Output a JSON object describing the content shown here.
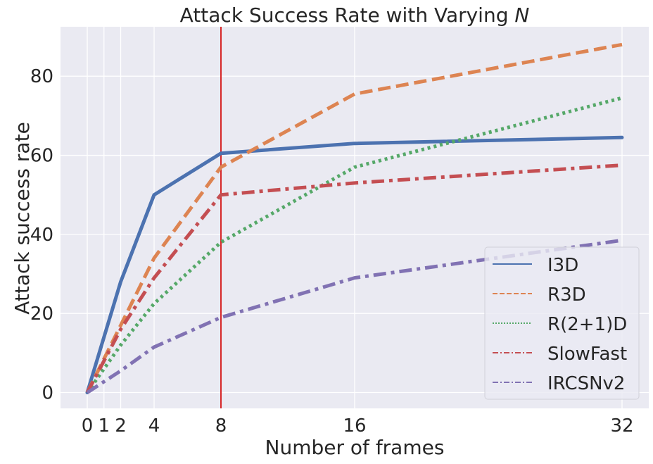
{
  "chart_data": {
    "type": "line",
    "title": "Attack Success Rate with Varying ",
    "title_italic": "N",
    "xlabel": "Number of frames",
    "ylabel": "Attack success rate",
    "xticks": [
      0,
      1,
      2,
      4,
      8,
      16,
      32
    ],
    "yticks": [
      0,
      20,
      40,
      60,
      80
    ],
    "xlim": [
      -1.6,
      33.6
    ],
    "ylim": [
      -4,
      92.5
    ],
    "grid": true,
    "legend_position": "lower-right",
    "vline_x": 8,
    "vline_color": "#d62728",
    "x": [
      0,
      2,
      4,
      8,
      16,
      32
    ],
    "series": [
      {
        "name": "I3D",
        "values": [
          0,
          28,
          50,
          60.5,
          63,
          64.5
        ],
        "color": "#4c72b0",
        "dash": "solid"
      },
      {
        "name": "R3D",
        "values": [
          0,
          17,
          34,
          57,
          75.5,
          88
        ],
        "color": "#dd8452",
        "dash": "dashed"
      },
      {
        "name": "R(2+1)D",
        "values": [
          0,
          12,
          22.5,
          38,
          57,
          74.5
        ],
        "color": "#55a868",
        "dash": "dotted"
      },
      {
        "name": "SlowFast",
        "values": [
          0,
          16,
          29,
          50,
          53,
          57.5
        ],
        "color": "#c44e52",
        "dash": "dashdot"
      },
      {
        "name": "IRCSNv2",
        "values": [
          0,
          5.5,
          11.5,
          19,
          29,
          38.5
        ],
        "color": "#8172b3",
        "dash": "dashdot"
      }
    ]
  }
}
